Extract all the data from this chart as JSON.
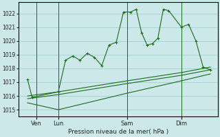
{
  "xlabel": "Pression niveau de la mer( hPa )",
  "bg_color": "#cce8e8",
  "grid_color": "#99cccc",
  "line_color": "#1a6b1a",
  "ylim": [
    1014.5,
    1022.8
  ],
  "xlim": [
    -0.5,
    10.5
  ],
  "day_labels": [
    "Ven",
    "Lun",
    "Sam",
    "Dim"
  ],
  "day_positions": [
    0.5,
    1.7,
    5.5,
    8.5
  ],
  "vline_positions": [
    0.5,
    1.7,
    5.5,
    8.5
  ],
  "line1_x": [
    0.0,
    0.25,
    1.7,
    2.1,
    2.5,
    2.9,
    3.3,
    3.7,
    4.1,
    4.5,
    4.9,
    5.3,
    5.7,
    6.0,
    6.3,
    6.6,
    6.9,
    7.2,
    7.5,
    7.8,
    8.5,
    8.9,
    9.3,
    9.7,
    10.1
  ],
  "line1_y": [
    1017.2,
    1015.9,
    1016.3,
    1018.6,
    1018.9,
    1018.6,
    1019.1,
    1018.8,
    1018.2,
    1019.7,
    1019.9,
    1022.1,
    1022.1,
    1022.3,
    1020.6,
    1019.7,
    1019.8,
    1020.2,
    1022.3,
    1022.2,
    1021.0,
    1021.2,
    1020.0,
    1018.1,
    1017.9
  ],
  "line2_x": [
    0.0,
    1.7,
    5.5,
    8.5,
    10.1
  ],
  "line2_y": [
    1015.8,
    1016.1,
    1016.9,
    1017.5,
    1017.9
  ],
  "line3_x": [
    0.0,
    1.7,
    5.5,
    8.5,
    10.1
  ],
  "line3_y": [
    1015.5,
    1015.0,
    1016.2,
    1017.1,
    1017.6
  ],
  "line4_x": [
    0.0,
    1.7,
    5.5,
    8.5,
    10.1
  ],
  "line4_y": [
    1016.0,
    1016.3,
    1017.1,
    1017.7,
    1018.1
  ],
  "yticks": [
    1015,
    1016,
    1017,
    1018,
    1019,
    1020,
    1021,
    1022
  ],
  "figsize": [
    3.2,
    2.0
  ],
  "dpi": 100
}
